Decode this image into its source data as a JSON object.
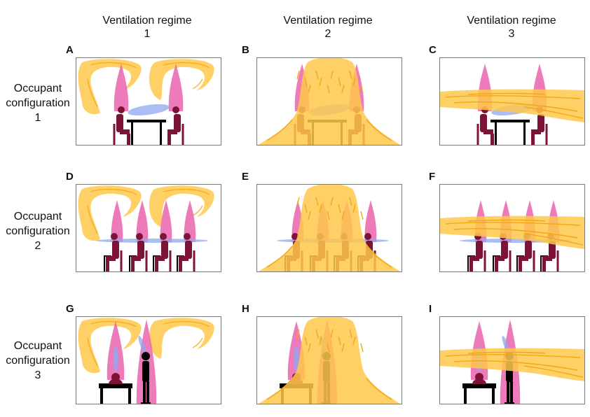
{
  "columns": [
    {
      "line1": "Ventilation regime",
      "line2": "1"
    },
    {
      "line1": "Ventilation regime",
      "line2": "2"
    },
    {
      "line1": "Ventilation regime",
      "line2": "3"
    }
  ],
  "rows": [
    {
      "line1": "Occupant",
      "line2": "configuration",
      "line3": "1"
    },
    {
      "line1": "Occupant",
      "line2": "configuration",
      "line3": "2"
    },
    {
      "line1": "Occupant",
      "line2": "configuration",
      "line3": "3"
    }
  ],
  "panels": [
    {
      "letter": "A",
      "regime": 1,
      "config": 1
    },
    {
      "letter": "B",
      "regime": 2,
      "config": 1
    },
    {
      "letter": "C",
      "regime": 3,
      "config": 1
    },
    {
      "letter": "D",
      "regime": 1,
      "config": 2
    },
    {
      "letter": "E",
      "regime": 2,
      "config": 2
    },
    {
      "letter": "F",
      "regime": 3,
      "config": 2
    },
    {
      "letter": "G",
      "regime": 1,
      "config": 3
    },
    {
      "letter": "H",
      "regime": 2,
      "config": 3
    },
    {
      "letter": "I",
      "regime": 3,
      "config": 3
    }
  ],
  "colors": {
    "airflow": "#ffc84a",
    "airflow_streak": "#f0a818",
    "plume": "#e85aa8",
    "exhaled": "#8ea8f0",
    "seated_person": "#7d1438",
    "standing_person": "#000000",
    "furniture": "#000000"
  }
}
